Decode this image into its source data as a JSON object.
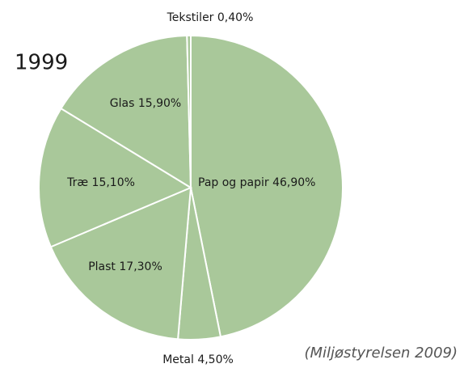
{
  "chart_data": {
    "type": "pie",
    "title": "1999",
    "categories": [
      "Pap og papir",
      "Metal",
      "Plast",
      "Træ",
      "Glas",
      "Tekstiler"
    ],
    "values": [
      46.9,
      4.5,
      17.3,
      15.1,
      15.9,
      0.4
    ],
    "value_labels": [
      "46,90%",
      "4,50%",
      "17,30%",
      "15,10%",
      "15,90%",
      "0,40%"
    ],
    "color": "#a9c89a",
    "annotation": "(Miljøstyrelsen 2009)"
  }
}
